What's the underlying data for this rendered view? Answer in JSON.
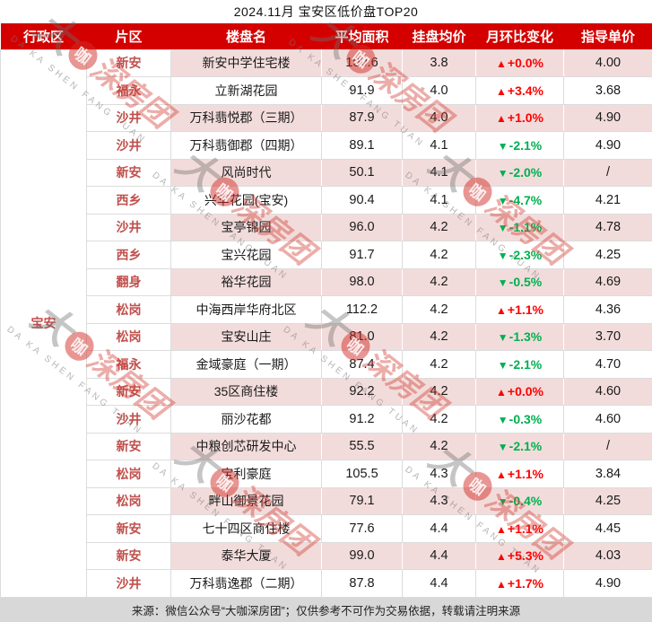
{
  "chart_data": {
    "type": "table",
    "title": "2024.11月 宝安区低价盘TOP20",
    "columns": [
      "行政区",
      "片区",
      "楼盘名",
      "平均面积",
      "挂盘均价",
      "月环比变化",
      "指导单价"
    ],
    "district_label": "宝安",
    "rows": [
      {
        "area": "新安",
        "name": "新安中学住宅楼",
        "avg_area": "100.6",
        "avg_price": "3.8",
        "change": "+0.0%",
        "change_dir": "up",
        "guide_price": "4.00"
      },
      {
        "area": "福永",
        "name": "立新湖花园",
        "avg_area": "91.9",
        "avg_price": "4.0",
        "change": "+3.4%",
        "change_dir": "up",
        "guide_price": "3.68"
      },
      {
        "area": "沙井",
        "name": "万科翡悦郡（三期）",
        "avg_area": "87.9",
        "avg_price": "4.0",
        "change": "+1.0%",
        "change_dir": "up",
        "guide_price": "4.90"
      },
      {
        "area": "沙井",
        "name": "万科翡御郡（四期）",
        "avg_area": "89.1",
        "avg_price": "4.1",
        "change": "-2.1%",
        "change_dir": "down",
        "guide_price": "4.90"
      },
      {
        "area": "新安",
        "name": "风尚时代",
        "avg_area": "50.1",
        "avg_price": "4.1",
        "change": "-2.0%",
        "change_dir": "down",
        "guide_price": "/"
      },
      {
        "area": "西乡",
        "name": "兴华花园(宝安)",
        "avg_area": "90.4",
        "avg_price": "4.1",
        "change": "-4.7%",
        "change_dir": "down",
        "guide_price": "4.21"
      },
      {
        "area": "沙井",
        "name": "宝亭锦园",
        "avg_area": "96.0",
        "avg_price": "4.2",
        "change": "-1.1%",
        "change_dir": "down",
        "guide_price": "4.78"
      },
      {
        "area": "西乡",
        "name": "宝兴花园",
        "avg_area": "91.7",
        "avg_price": "4.2",
        "change": "-2.3%",
        "change_dir": "down",
        "guide_price": "4.25"
      },
      {
        "area": "翻身",
        "name": "裕华花园",
        "avg_area": "98.0",
        "avg_price": "4.2",
        "change": "-0.5%",
        "change_dir": "down",
        "guide_price": "4.69"
      },
      {
        "area": "松岗",
        "name": "中海西岸华府北区",
        "avg_area": "112.2",
        "avg_price": "4.2",
        "change": "+1.1%",
        "change_dir": "up",
        "guide_price": "4.36"
      },
      {
        "area": "松岗",
        "name": "宝安山庄",
        "avg_area": "81.0",
        "avg_price": "4.2",
        "change": "-1.3%",
        "change_dir": "down",
        "guide_price": "3.70"
      },
      {
        "area": "福永",
        "name": "金域豪庭（一期）",
        "avg_area": "87.4",
        "avg_price": "4.2",
        "change": "-2.1%",
        "change_dir": "down",
        "guide_price": "4.70"
      },
      {
        "area": "新安",
        "name": "35区商住楼",
        "avg_area": "92.2",
        "avg_price": "4.2",
        "change": "+0.0%",
        "change_dir": "up",
        "guide_price": "4.60"
      },
      {
        "area": "沙井",
        "name": "丽沙花都",
        "avg_area": "91.2",
        "avg_price": "4.2",
        "change": "-0.3%",
        "change_dir": "down",
        "guide_price": "4.60"
      },
      {
        "area": "新安",
        "name": "中粮创芯研发中心",
        "avg_area": "55.5",
        "avg_price": "4.2",
        "change": "-2.1%",
        "change_dir": "down",
        "guide_price": "/"
      },
      {
        "area": "松岗",
        "name": "宝利豪庭",
        "avg_area": "105.5",
        "avg_price": "4.3",
        "change": "+1.1%",
        "change_dir": "up",
        "guide_price": "3.84"
      },
      {
        "area": "松岗",
        "name": "畔山御景花园",
        "avg_area": "79.1",
        "avg_price": "4.3",
        "change": "-0.4%",
        "change_dir": "down",
        "guide_price": "4.25"
      },
      {
        "area": "新安",
        "name": "七十四区商住楼",
        "avg_area": "77.6",
        "avg_price": "4.4",
        "change": "+1.1%",
        "change_dir": "up",
        "guide_price": "4.45"
      },
      {
        "area": "新安",
        "name": "泰华大厦",
        "avg_area": "99.0",
        "avg_price": "4.4",
        "change": "+5.3%",
        "change_dir": "up",
        "guide_price": "4.03"
      },
      {
        "area": "沙井",
        "name": "万科翡逸郡（二期）",
        "avg_area": "87.8",
        "avg_price": "4.4",
        "change": "+1.7%",
        "change_dir": "up",
        "guide_price": "4.90"
      }
    ],
    "footer_note": "来源：微信公众号“大咖深房团”；仅供参考不可作为交易依据，转载请注明来源",
    "legend_position": "none",
    "grid": true
  },
  "icons": {
    "up_arrow": "▲",
    "down_arrow": "▼"
  },
  "watermark": {
    "cn_prefix": "大",
    "cn_circle": "咖",
    "cn_suffix": "深房团",
    "latin": "DA KA SHEN FANG TUAN"
  },
  "colors": {
    "header_bg": "#D40000",
    "header_text": "#FFFFFF",
    "alt_row_bg": "#F2DCDB",
    "area_text": "#C0504D",
    "up_change": "#FF0000",
    "down_change": "#00B050",
    "grid_line": "#DCDCDC",
    "footer_bg": "#D8D8D8"
  }
}
